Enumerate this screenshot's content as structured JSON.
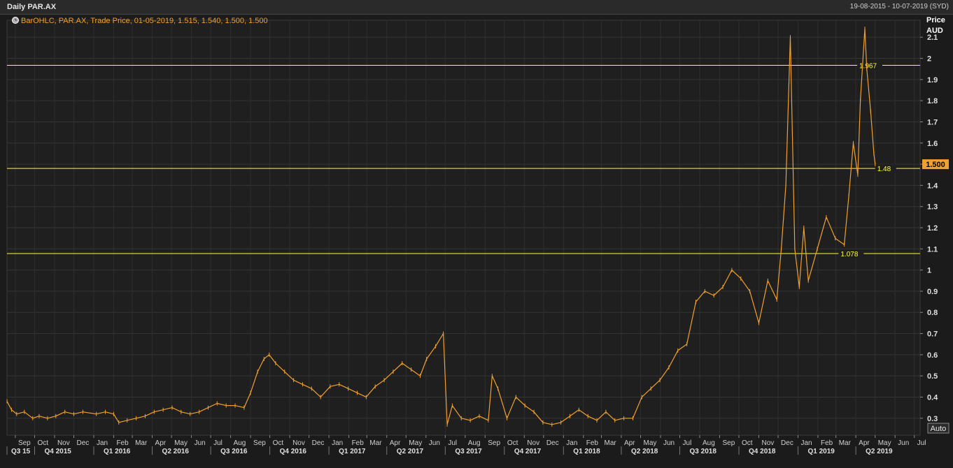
{
  "window": {
    "title": "Daily PAR.AX",
    "date_range": "19-08-2015 - 10-07-2019 (SYD)",
    "auto_button": "Auto"
  },
  "colors": {
    "background": "#1b1b1b",
    "price_series": "#f0a030",
    "reference_lines": "#ffff40",
    "current_price_badge": "#f0a030",
    "grid": "#3a3a3a"
  },
  "chart_data": {
    "type": "line",
    "title": "Daily PAR.AX",
    "legend": "BarOHLC, PAR.AX, Trade Price, 01-05-2019, 1.515, 1.540, 1.500, 1.500",
    "legend_position": "top-left",
    "ylabel": "Price",
    "yunit": "AUD",
    "ylim": [
      0.22,
      2.18
    ],
    "yticks": [
      0.3,
      0.4,
      0.5,
      0.6,
      0.7,
      0.8,
      0.9,
      1,
      1.1,
      1.2,
      1.3,
      1.4,
      1.5,
      1.6,
      1.7,
      1.8,
      1.9,
      2,
      2.1
    ],
    "ytick_labels": [
      "0.3",
      "0.4",
      "0.5",
      "0.6",
      "0.7",
      "0.8",
      "0.9",
      "1",
      "1.1",
      "1.2",
      "1.3",
      "1.4",
      "1.5",
      "1.6",
      "1.7",
      "1.8",
      "1.9",
      "2",
      "2.1"
    ],
    "xlim": [
      "2015-08-19",
      "2019-07-10"
    ],
    "month_ticks": [
      {
        "date": "2015-09-01",
        "label": "Sep"
      },
      {
        "date": "2015-10-01",
        "label": "Oct"
      },
      {
        "date": "2015-11-01",
        "label": "Nov"
      },
      {
        "date": "2015-12-01",
        "label": "Dec"
      },
      {
        "date": "2016-01-01",
        "label": "Jan"
      },
      {
        "date": "2016-02-01",
        "label": "Feb"
      },
      {
        "date": "2016-03-01",
        "label": "Mar"
      },
      {
        "date": "2016-04-01",
        "label": "Apr"
      },
      {
        "date": "2016-05-01",
        "label": "May"
      },
      {
        "date": "2016-06-01",
        "label": "Jun"
      },
      {
        "date": "2016-07-01",
        "label": "Jul"
      },
      {
        "date": "2016-08-01",
        "label": "Aug"
      },
      {
        "date": "2016-09-01",
        "label": "Sep"
      },
      {
        "date": "2016-10-01",
        "label": "Oct"
      },
      {
        "date": "2016-11-01",
        "label": "Nov"
      },
      {
        "date": "2016-12-01",
        "label": "Dec"
      },
      {
        "date": "2017-01-01",
        "label": "Jan"
      },
      {
        "date": "2017-02-01",
        "label": "Feb"
      },
      {
        "date": "2017-03-01",
        "label": "Mar"
      },
      {
        "date": "2017-04-01",
        "label": "Apr"
      },
      {
        "date": "2017-05-01",
        "label": "May"
      },
      {
        "date": "2017-06-01",
        "label": "Jun"
      },
      {
        "date": "2017-07-01",
        "label": "Jul"
      },
      {
        "date": "2017-08-01",
        "label": "Aug"
      },
      {
        "date": "2017-09-01",
        "label": "Sep"
      },
      {
        "date": "2017-10-01",
        "label": "Oct"
      },
      {
        "date": "2017-11-01",
        "label": "Nov"
      },
      {
        "date": "2017-12-01",
        "label": "Dec"
      },
      {
        "date": "2018-01-01",
        "label": "Jan"
      },
      {
        "date": "2018-02-01",
        "label": "Feb"
      },
      {
        "date": "2018-03-01",
        "label": "Mar"
      },
      {
        "date": "2018-04-01",
        "label": "Apr"
      },
      {
        "date": "2018-05-01",
        "label": "May"
      },
      {
        "date": "2018-06-01",
        "label": "Jun"
      },
      {
        "date": "2018-07-01",
        "label": "Jul"
      },
      {
        "date": "2018-08-01",
        "label": "Aug"
      },
      {
        "date": "2018-09-01",
        "label": "Sep"
      },
      {
        "date": "2018-10-01",
        "label": "Oct"
      },
      {
        "date": "2018-11-01",
        "label": "Nov"
      },
      {
        "date": "2018-12-01",
        "label": "Dec"
      },
      {
        "date": "2019-01-01",
        "label": "Jan"
      },
      {
        "date": "2019-02-01",
        "label": "Feb"
      },
      {
        "date": "2019-03-01",
        "label": "Mar"
      },
      {
        "date": "2019-04-01",
        "label": "Apr"
      },
      {
        "date": "2019-05-01",
        "label": "May"
      },
      {
        "date": "2019-06-01",
        "label": "Jun"
      },
      {
        "date": "2019-07-01",
        "label": "Jul"
      }
    ],
    "quarter_ticks": [
      {
        "date": "2015-08-19",
        "label": "Q3 15"
      },
      {
        "date": "2015-10-01",
        "label": "Q4 2015"
      },
      {
        "date": "2016-01-01",
        "label": "Q1 2016"
      },
      {
        "date": "2016-04-01",
        "label": "Q2 2016"
      },
      {
        "date": "2016-07-01",
        "label": "Q3 2016"
      },
      {
        "date": "2016-10-01",
        "label": "Q4 2016"
      },
      {
        "date": "2017-01-01",
        "label": "Q1 2017"
      },
      {
        "date": "2017-04-01",
        "label": "Q2 2017"
      },
      {
        "date": "2017-07-01",
        "label": "Q3 2017"
      },
      {
        "date": "2017-10-01",
        "label": "Q4 2017"
      },
      {
        "date": "2018-01-01",
        "label": "Q1 2018"
      },
      {
        "date": "2018-04-01",
        "label": "Q2 2018"
      },
      {
        "date": "2018-07-01",
        "label": "Q3 2018"
      },
      {
        "date": "2018-10-01",
        "label": "Q4 2018"
      },
      {
        "date": "2019-01-01",
        "label": "Q1 2019"
      },
      {
        "date": "2019-04-01",
        "label": "Q2 2019"
      }
    ],
    "reference_lines": [
      {
        "value": 1.967,
        "label": "1.967",
        "label_date": "2019-04-03"
      },
      {
        "value": 1.48,
        "label": "1.48",
        "label_date": "2019-05-01"
      },
      {
        "value": 1.078,
        "label": "1.078",
        "label_date": "2019-03-05"
      }
    ],
    "last_price": {
      "value": 1.5,
      "label": "1.500"
    },
    "grid": true,
    "series": [
      {
        "points": [
          [
            "2015-08-19",
            0.38
          ],
          [
            "2015-08-26",
            0.34
          ],
          [
            "2015-09-03",
            0.32
          ],
          [
            "2015-09-15",
            0.33
          ],
          [
            "2015-09-28",
            0.3
          ],
          [
            "2015-10-08",
            0.31
          ],
          [
            "2015-10-21",
            0.3
          ],
          [
            "2015-11-03",
            0.31
          ],
          [
            "2015-11-17",
            0.33
          ],
          [
            "2015-12-01",
            0.32
          ],
          [
            "2015-12-15",
            0.33
          ],
          [
            "2016-01-05",
            0.32
          ],
          [
            "2016-01-19",
            0.33
          ],
          [
            "2016-02-01",
            0.32
          ],
          [
            "2016-02-09",
            0.28
          ],
          [
            "2016-02-22",
            0.29
          ],
          [
            "2016-03-07",
            0.3
          ],
          [
            "2016-03-21",
            0.31
          ],
          [
            "2016-04-04",
            0.33
          ],
          [
            "2016-04-18",
            0.34
          ],
          [
            "2016-05-02",
            0.35
          ],
          [
            "2016-05-16",
            0.33
          ],
          [
            "2016-05-30",
            0.32
          ],
          [
            "2016-06-13",
            0.33
          ],
          [
            "2016-06-27",
            0.35
          ],
          [
            "2016-07-11",
            0.37
          ],
          [
            "2016-07-25",
            0.36
          ],
          [
            "2016-08-08",
            0.36
          ],
          [
            "2016-08-22",
            0.35
          ],
          [
            "2016-09-01",
            0.42
          ],
          [
            "2016-09-12",
            0.52
          ],
          [
            "2016-09-22",
            0.58
          ],
          [
            "2016-09-30",
            0.6
          ],
          [
            "2016-10-10",
            0.56
          ],
          [
            "2016-10-24",
            0.52
          ],
          [
            "2016-11-07",
            0.48
          ],
          [
            "2016-11-21",
            0.46
          ],
          [
            "2016-12-05",
            0.44
          ],
          [
            "2016-12-19",
            0.4
          ],
          [
            "2017-01-03",
            0.45
          ],
          [
            "2017-01-17",
            0.46
          ],
          [
            "2017-01-31",
            0.44
          ],
          [
            "2017-02-14",
            0.42
          ],
          [
            "2017-02-28",
            0.4
          ],
          [
            "2017-03-14",
            0.45
          ],
          [
            "2017-03-28",
            0.48
          ],
          [
            "2017-04-11",
            0.52
          ],
          [
            "2017-04-25",
            0.56
          ],
          [
            "2017-05-09",
            0.53
          ],
          [
            "2017-05-23",
            0.5
          ],
          [
            "2017-06-02",
            0.58
          ],
          [
            "2017-06-16",
            0.64
          ],
          [
            "2017-06-28",
            0.7
          ],
          [
            "2017-07-04",
            0.27
          ],
          [
            "2017-07-12",
            0.36
          ],
          [
            "2017-07-26",
            0.3
          ],
          [
            "2017-08-09",
            0.29
          ],
          [
            "2017-08-23",
            0.31
          ],
          [
            "2017-09-06",
            0.29
          ],
          [
            "2017-09-12",
            0.5
          ],
          [
            "2017-09-21",
            0.44
          ],
          [
            "2017-10-05",
            0.3
          ],
          [
            "2017-10-19",
            0.4
          ],
          [
            "2017-11-02",
            0.36
          ],
          [
            "2017-11-16",
            0.33
          ],
          [
            "2017-11-30",
            0.28
          ],
          [
            "2017-12-14",
            0.27
          ],
          [
            "2017-12-28",
            0.28
          ],
          [
            "2018-01-11",
            0.31
          ],
          [
            "2018-01-25",
            0.34
          ],
          [
            "2018-02-08",
            0.31
          ],
          [
            "2018-02-22",
            0.29
          ],
          [
            "2018-03-08",
            0.33
          ],
          [
            "2018-03-22",
            0.29
          ],
          [
            "2018-04-05",
            0.3
          ],
          [
            "2018-04-19",
            0.3
          ],
          [
            "2018-05-03",
            0.4
          ],
          [
            "2018-05-17",
            0.44
          ],
          [
            "2018-05-31",
            0.48
          ],
          [
            "2018-06-14",
            0.54
          ],
          [
            "2018-06-28",
            0.62
          ],
          [
            "2018-07-12",
            0.65
          ],
          [
            "2018-07-26",
            0.85
          ],
          [
            "2018-08-09",
            0.9
          ],
          [
            "2018-08-23",
            0.88
          ],
          [
            "2018-09-06",
            0.92
          ],
          [
            "2018-09-20",
            1.0
          ],
          [
            "2018-10-04",
            0.96
          ],
          [
            "2018-10-18",
            0.9
          ],
          [
            "2018-11-01",
            0.75
          ],
          [
            "2018-11-15",
            0.95
          ],
          [
            "2018-11-29",
            0.86
          ],
          [
            "2018-12-06",
            1.1
          ],
          [
            "2018-12-13",
            1.4
          ],
          [
            "2018-12-20",
            2.1
          ],
          [
            "2018-12-27",
            1.1
          ],
          [
            "2019-01-03",
            0.92
          ],
          [
            "2019-01-10",
            1.2
          ],
          [
            "2019-01-17",
            0.95
          ],
          [
            "2019-01-31",
            1.1
          ],
          [
            "2019-02-14",
            1.25
          ],
          [
            "2019-02-28",
            1.15
          ],
          [
            "2019-03-14",
            1.12
          ],
          [
            "2019-03-21",
            1.35
          ],
          [
            "2019-03-28",
            1.6
          ],
          [
            "2019-04-04",
            1.45
          ],
          [
            "2019-04-08",
            1.8
          ],
          [
            "2019-04-15",
            2.14
          ],
          [
            "2019-04-18",
            1.95
          ],
          [
            "2019-04-24",
            1.75
          ],
          [
            "2019-04-29",
            1.55
          ],
          [
            "2019-05-01",
            1.5
          ]
        ]
      }
    ]
  }
}
